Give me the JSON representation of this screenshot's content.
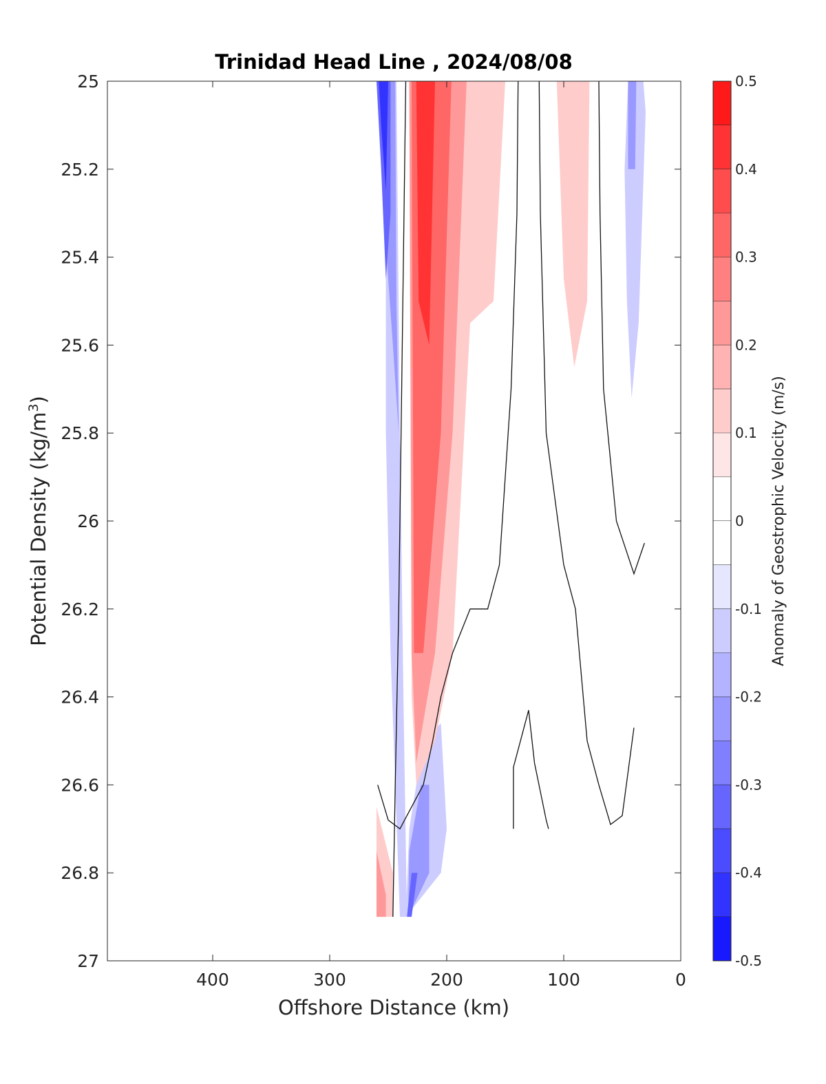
{
  "chart_data": {
    "type": "heatmap",
    "title": "Trinidad Head Line , 2024/08/08",
    "xlabel": "Offshore Distance (km)",
    "ylabel": "Potential Density (kg/m",
    "ylabel_sup": "3",
    "ylabel_close": ")",
    "x_reversed": true,
    "xlim": [
      0,
      490
    ],
    "ylim": [
      25,
      27
    ],
    "y_reversed": true,
    "grid": false,
    "xticks": [
      400,
      300,
      200,
      100,
      0
    ],
    "xtick_labels": [
      "400",
      "300",
      "200",
      "100",
      "0"
    ],
    "yticks": [
      25,
      25.2,
      25.4,
      25.6,
      25.8,
      26,
      26.2,
      26.4,
      26.6,
      26.8,
      27
    ],
    "ytick_labels": [
      "25",
      "25.2",
      "25.4",
      "25.6",
      "25.8",
      "26",
      "26.2",
      "26.4",
      "26.6",
      "26.8",
      "27"
    ],
    "colorbar": {
      "label": "Anomaly of Geostrophic Velocity (m/s)",
      "range": [
        -0.5,
        0.5
      ],
      "step": 0.05,
      "ticks": [
        0.5,
        0.4,
        0.3,
        0.2,
        0.1,
        0,
        -0.1,
        -0.2,
        -0.3,
        -0.4,
        -0.5
      ],
      "tick_labels": [
        "0.5",
        "0.4",
        "0.3",
        "0.2",
        "0.1",
        "0",
        "-0.1",
        "-0.2",
        "-0.3",
        "-0.4",
        "-0.5"
      ],
      "colormap": "blue-white-red"
    },
    "regions": [
      {
        "value": -0.1,
        "points": [
          [
            260,
            25
          ],
          [
            243,
            25
          ],
          [
            240,
            25.8
          ],
          [
            237,
            26.4
          ],
          [
            234,
            26.9
          ],
          [
            240,
            26.9
          ],
          [
            248,
            26.3
          ],
          [
            252,
            25.8
          ],
          [
            252,
            25.0
          ]
        ]
      },
      {
        "value": -0.1,
        "points": [
          [
            45,
            25
          ],
          [
            32,
            25
          ],
          [
            30,
            25.07
          ],
          [
            36,
            25.55
          ],
          [
            42,
            25.72
          ],
          [
            46,
            25.5
          ],
          [
            48,
            25.2
          ]
        ]
      },
      {
        "value": -0.1,
        "points": [
          [
            220,
            26.5
          ],
          [
            205,
            26.46
          ],
          [
            200,
            26.7
          ],
          [
            205,
            26.8
          ],
          [
            235,
            26.9
          ],
          [
            232,
            26.7
          ]
        ]
      },
      {
        "value": -0.2,
        "points": [
          [
            260,
            25
          ],
          [
            244,
            25
          ],
          [
            243,
            25.5
          ],
          [
            241,
            25.8
          ],
          [
            246,
            25.6
          ],
          [
            254,
            25.3
          ],
          [
            258,
            25.0
          ]
        ]
      },
      {
        "value": -0.2,
        "points": [
          [
            45,
            25
          ],
          [
            38,
            25
          ],
          [
            39,
            25.2
          ],
          [
            45,
            25.2
          ]
        ]
      },
      {
        "value": -0.2,
        "points": [
          [
            222,
            26.6
          ],
          [
            215,
            26.6
          ],
          [
            215,
            26.8
          ],
          [
            233,
            26.9
          ],
          [
            232,
            26.75
          ]
        ]
      },
      {
        "value": -0.3,
        "points": [
          [
            260,
            25
          ],
          [
            248,
            25
          ],
          [
            248,
            25.3
          ],
          [
            252,
            25.45
          ],
          [
            256,
            25.2
          ]
        ]
      },
      {
        "value": -0.3,
        "points": [
          [
            225,
            26.8
          ],
          [
            230,
            26.9
          ],
          [
            234,
            26.9
          ],
          [
            230,
            26.8
          ]
        ]
      },
      {
        "value": -0.4,
        "points": [
          [
            258,
            25
          ],
          [
            250,
            25
          ],
          [
            252,
            25.25
          ],
          [
            256,
            25.1
          ]
        ]
      },
      {
        "value": 0.1,
        "points": [
          [
            232,
            25
          ],
          [
            150,
            25
          ],
          [
            160,
            25.5
          ],
          [
            180,
            25.55
          ],
          [
            195,
            26.3
          ],
          [
            210,
            26.5
          ],
          [
            226,
            26.6
          ],
          [
            230,
            26.4
          ]
        ]
      },
      {
        "value": 0.1,
        "points": [
          [
            106,
            25
          ],
          [
            78,
            25
          ],
          [
            80,
            25.5
          ],
          [
            91,
            25.65
          ],
          [
            100,
            25.45
          ]
        ]
      },
      {
        "value": 0.1,
        "points": [
          [
            260,
            26.65
          ],
          [
            246,
            26.8
          ],
          [
            246,
            26.9
          ],
          [
            260,
            26.9
          ]
        ]
      },
      {
        "value": 0.2,
        "points": [
          [
            232,
            25
          ],
          [
            183,
            25
          ],
          [
            195,
            25.8
          ],
          [
            210,
            26.3
          ],
          [
            226,
            26.55
          ],
          [
            230,
            26.3
          ]
        ]
      },
      {
        "value": 0.2,
        "points": [
          [
            260,
            26.75
          ],
          [
            252,
            26.85
          ],
          [
            252,
            26.9
          ],
          [
            260,
            26.9
          ]
        ]
      },
      {
        "value": 0.3,
        "points": [
          [
            230,
            25
          ],
          [
            196,
            25
          ],
          [
            205,
            25.8
          ],
          [
            220,
            26.3
          ],
          [
            228,
            26.3
          ]
        ]
      },
      {
        "value": 0.4,
        "points": [
          [
            226,
            25
          ],
          [
            210,
            25
          ],
          [
            215,
            25.6
          ],
          [
            224,
            25.5
          ]
        ]
      }
    ],
    "contours": [
      [
        [
          235,
          25
        ],
        [
          237,
          25.4
        ],
        [
          239,
          25.8
        ],
        [
          241,
          26.2
        ],
        [
          244,
          26.6
        ],
        [
          246,
          26.9
        ]
      ],
      [
        [
          139,
          25
        ],
        [
          140,
          25.3
        ],
        [
          145,
          25.7
        ],
        [
          155,
          26.1
        ],
        [
          165,
          26.2
        ],
        [
          180,
          26.2
        ],
        [
          195,
          26.3
        ],
        [
          205,
          26.4
        ],
        [
          212,
          26.5
        ],
        [
          220,
          26.6
        ],
        [
          230,
          26.65
        ],
        [
          240,
          26.7
        ],
        [
          250,
          26.68
        ],
        [
          259,
          26.6
        ]
      ],
      [
        [
          70,
          25
        ],
        [
          69,
          25.3
        ],
        [
          66,
          25.7
        ],
        [
          55,
          26.0
        ],
        [
          40,
          26.12
        ],
        [
          31,
          26.05
        ]
      ],
      [
        [
          121,
          25
        ],
        [
          120,
          25.3
        ],
        [
          115,
          25.8
        ],
        [
          100,
          26.1
        ],
        [
          90,
          26.2
        ],
        [
          80,
          26.5
        ],
        [
          70,
          26.6
        ],
        [
          60,
          26.69
        ],
        [
          50,
          26.67
        ],
        [
          40,
          26.47
        ]
      ],
      [
        [
          143,
          26.7
        ],
        [
          143,
          26.56
        ],
        [
          130,
          26.43
        ],
        [
          125,
          26.55
        ],
        [
          115,
          26.68
        ],
        [
          113,
          26.7
        ]
      ]
    ]
  }
}
